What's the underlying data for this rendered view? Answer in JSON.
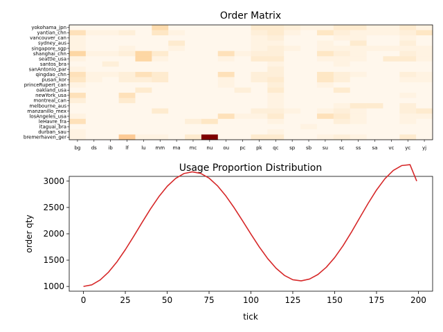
{
  "chart_data": [
    {
      "type": "heatmap",
      "title": "Order Matrix",
      "xlabel": "",
      "ylabel": "",
      "colormap": "OrRd",
      "colors": {
        "low": "#fff7ec",
        "mid": "#fdbb84",
        "high": "#7f0000"
      },
      "x_categories": [
        "bg",
        "ds",
        "ib",
        "lf",
        "lu",
        "mm",
        "ma",
        "mc",
        "nu",
        "ou",
        "pc",
        "pk",
        "qc",
        "sp",
        "sb",
        "su",
        "sc",
        "ss",
        "sa",
        "vc",
        "yc",
        "yj"
      ],
      "y_categories": [
        "yokohama_jpn",
        "yantian_chn",
        "vancouver_can",
        "sydney_aus",
        "singapore_sgp",
        "shanghai_chn",
        "seattle_usa",
        "santos_bra",
        "sanAntonio_par",
        "qingdao_chn",
        "pusan_kor",
        "princeRupert_can",
        "oakland_usa",
        "newYork_usa",
        "montreal_can",
        "melbourne_aus",
        "manzanillo_mex",
        "losAngeles_usa",
        "leHavre_fra",
        "itaguai_bra",
        "durban_sau",
        "bremerhaven_ger"
      ],
      "values": [
        [
          0,
          0,
          0,
          0,
          0,
          6,
          0,
          0,
          0,
          0,
          0,
          3,
          3,
          2,
          1,
          1,
          3,
          3,
          1,
          1,
          3,
          1
        ],
        [
          5,
          1,
          1,
          2,
          0,
          4,
          1,
          0,
          0,
          0,
          0,
          2,
          3,
          1,
          0,
          4,
          2,
          1,
          1,
          1,
          2,
          4
        ],
        [
          1,
          0,
          0,
          0,
          0,
          0,
          0,
          0,
          0,
          0,
          0,
          1,
          2,
          0,
          0,
          0,
          1,
          1,
          0,
          0,
          1,
          0
        ],
        [
          1,
          0,
          0,
          0,
          0,
          0,
          3,
          0,
          0,
          0,
          0,
          1,
          1,
          0,
          0,
          1,
          0,
          3,
          0,
          0,
          2,
          0
        ],
        [
          1,
          0,
          0,
          1,
          0,
          0,
          1,
          0,
          0,
          0,
          0,
          1,
          2,
          1,
          0,
          1,
          1,
          1,
          1,
          1,
          1,
          1
        ],
        [
          7,
          1,
          1,
          2,
          7,
          3,
          0,
          0,
          0,
          5,
          1,
          2,
          2,
          0,
          0,
          4,
          2,
          1,
          0,
          0,
          2,
          1
        ],
        [
          1,
          0,
          0,
          0,
          7,
          1,
          0,
          0,
          0,
          1,
          0,
          3,
          3,
          0,
          0,
          1,
          1,
          1,
          0,
          3,
          3,
          1
        ],
        [
          0,
          0,
          2,
          0,
          0,
          0,
          0,
          0,
          0,
          0,
          0,
          0,
          1,
          0,
          0,
          0,
          1,
          0,
          0,
          0,
          0,
          0
        ],
        [
          1,
          0,
          0,
          0,
          0,
          0,
          0,
          0,
          0,
          0,
          0,
          0,
          2,
          0,
          0,
          0,
          0,
          0,
          0,
          0,
          0,
          0
        ],
        [
          5,
          1,
          1,
          2,
          5,
          3,
          0,
          0,
          0,
          5,
          0,
          2,
          2,
          0,
          0,
          4,
          2,
          1,
          0,
          0,
          2,
          1
        ],
        [
          4,
          1,
          0,
          2,
          2,
          3,
          0,
          0,
          0,
          1,
          0,
          2,
          3,
          0,
          0,
          4,
          2,
          0,
          0,
          0,
          1,
          1
        ],
        [
          1,
          0,
          0,
          0,
          0,
          0,
          0,
          0,
          0,
          1,
          0,
          0,
          2,
          0,
          0,
          1,
          0,
          0,
          0,
          0,
          0,
          0
        ],
        [
          0,
          0,
          0,
          0,
          3,
          0,
          0,
          0,
          0,
          0,
          2,
          0,
          3,
          0,
          0,
          0,
          3,
          0,
          0,
          0,
          0,
          0
        ],
        [
          5,
          0,
          0,
          5,
          0,
          0,
          0,
          0,
          0,
          0,
          0,
          0,
          1,
          0,
          0,
          0,
          0,
          0,
          0,
          0,
          1,
          0
        ],
        [
          2,
          0,
          0,
          3,
          0,
          0,
          0,
          0,
          0,
          0,
          0,
          0,
          1,
          0,
          0,
          0,
          0,
          0,
          0,
          0,
          0,
          0
        ],
        [
          0,
          0,
          0,
          0,
          0,
          0,
          0,
          0,
          0,
          0,
          0,
          0,
          1,
          0,
          0,
          0,
          1,
          3,
          3,
          0,
          2,
          0
        ],
        [
          0,
          0,
          0,
          0,
          0,
          3,
          0,
          0,
          0,
          0,
          0,
          2,
          2,
          1,
          0,
          1,
          2,
          1,
          0,
          0,
          2,
          3
        ],
        [
          1,
          0,
          0,
          0,
          0,
          0,
          0,
          0,
          0,
          5,
          1,
          1,
          3,
          0,
          0,
          5,
          3,
          1,
          0,
          0,
          1,
          1
        ],
        [
          5,
          0,
          0,
          0,
          0,
          0,
          0,
          2,
          4,
          0,
          0,
          0,
          1,
          0,
          0,
          0,
          2,
          1,
          0,
          0,
          1,
          0
        ],
        [
          0,
          0,
          0,
          0,
          0,
          0,
          0,
          0,
          0,
          0,
          0,
          0,
          0,
          0,
          1,
          0,
          0,
          0,
          0,
          0,
          0,
          0
        ],
        [
          1,
          0,
          0,
          0,
          0,
          0,
          0,
          0,
          0,
          0,
          0,
          0,
          1,
          0,
          0,
          0,
          0,
          0,
          0,
          0,
          0,
          0
        ],
        [
          1,
          0,
          0,
          9,
          1,
          1,
          0,
          3,
          30,
          0,
          0,
          3,
          3,
          0,
          0,
          1,
          2,
          1,
          0,
          0,
          3,
          0
        ]
      ],
      "value_max": 30
    },
    {
      "type": "line",
      "title": "Usage Proportion Distribution",
      "xlabel": "tick",
      "ylabel": "order qty",
      "xlim": [
        -8.5,
        208.5
      ],
      "ylim": [
        910,
        3090
      ],
      "xticks": [
        0,
        25,
        50,
        75,
        100,
        125,
        150,
        175,
        200
      ],
      "yticks": [
        1000,
        1500,
        2000,
        2500,
        3000
      ],
      "grid": false,
      "series": [
        {
          "color": "#d62728",
          "x": [
            0,
            5,
            10,
            15,
            20,
            25,
            30,
            35,
            40,
            45,
            50,
            55,
            60,
            65,
            70,
            75,
            80,
            85,
            90,
            95,
            100,
            105,
            110,
            115,
            120,
            125,
            130,
            135,
            140,
            145,
            150,
            155,
            160,
            165,
            170,
            175,
            180,
            185,
            190,
            195,
            199
          ],
          "y": [
            1000,
            1031,
            1124,
            1272,
            1467,
            1698,
            1952,
            2214,
            2470,
            2704,
            2901,
            3050,
            3144,
            3176,
            3147,
            3057,
            2912,
            2720,
            2494,
            2247,
            1994,
            1750,
            1530,
            1347,
            1210,
            1128,
            1106,
            1141,
            1227,
            1364,
            1548,
            1773,
            2030,
            2305,
            2578,
            2831,
            3045,
            3203,
            3295,
            3313,
            3000
          ]
        }
      ]
    }
  ]
}
